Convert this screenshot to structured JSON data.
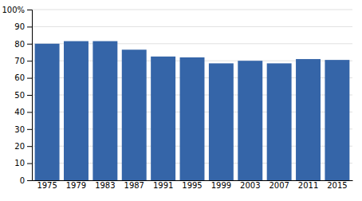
{
  "chart_data": {
    "type": "bar",
    "categories": [
      "1975",
      "1979",
      "1983",
      "1987",
      "1991",
      "1995",
      "1999",
      "2003",
      "2007",
      "2011",
      "2015"
    ],
    "values": [
      80.0,
      81.5,
      81.5,
      76.5,
      72.5,
      72.0,
      68.5,
      70.0,
      68.5,
      71.0,
      70.5
    ],
    "color": "#3565a8",
    "ylim": [
      0,
      100
    ],
    "yticks": [
      0,
      10,
      20,
      30,
      40,
      50,
      60,
      70,
      80,
      90,
      {
        "value": 100,
        "label": "100%"
      }
    ],
    "grid": true
  }
}
